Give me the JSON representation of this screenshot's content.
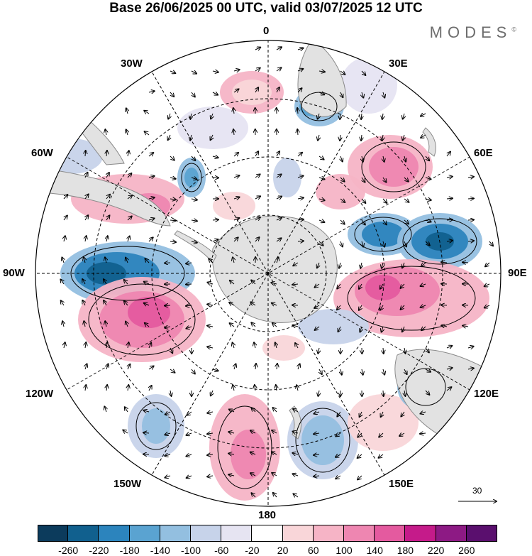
{
  "title": "Base 26/06/2025 00 UTC, valid 03/07/2025 12 UTC",
  "brand": "MODES",
  "brand_mark": "©",
  "lon_labels": {
    "l0": "0",
    "l30e": "30E",
    "l60e": "60E",
    "l90e": "90E",
    "l120e": "120E",
    "l150e": "150E",
    "l180": "180",
    "l150w": "150W",
    "l120w": "120W",
    "l90w": "90W",
    "l60w": "60W",
    "l30w": "30W"
  },
  "vector_reference": "30",
  "colorbar": {
    "colors": [
      "#0c3b5c",
      "#11608e",
      "#2c84bd",
      "#5aa3d1",
      "#93bfe0",
      "#c7d3ea",
      "#e6e4f2",
      "#ffffff",
      "#f9d6d9",
      "#f6b4c6",
      "#ee86b1",
      "#e45a9f",
      "#c51b8a",
      "#8d1a84",
      "#5a0f6e"
    ],
    "ticks": [
      "-260",
      "-220",
      "-180",
      "-140",
      "-100",
      "-60",
      "-20",
      "20",
      "60",
      "100",
      "140",
      "180",
      "220",
      "260"
    ]
  },
  "colors": {
    "land": "#e2e2e2",
    "coast": "#8a8a8a"
  }
}
